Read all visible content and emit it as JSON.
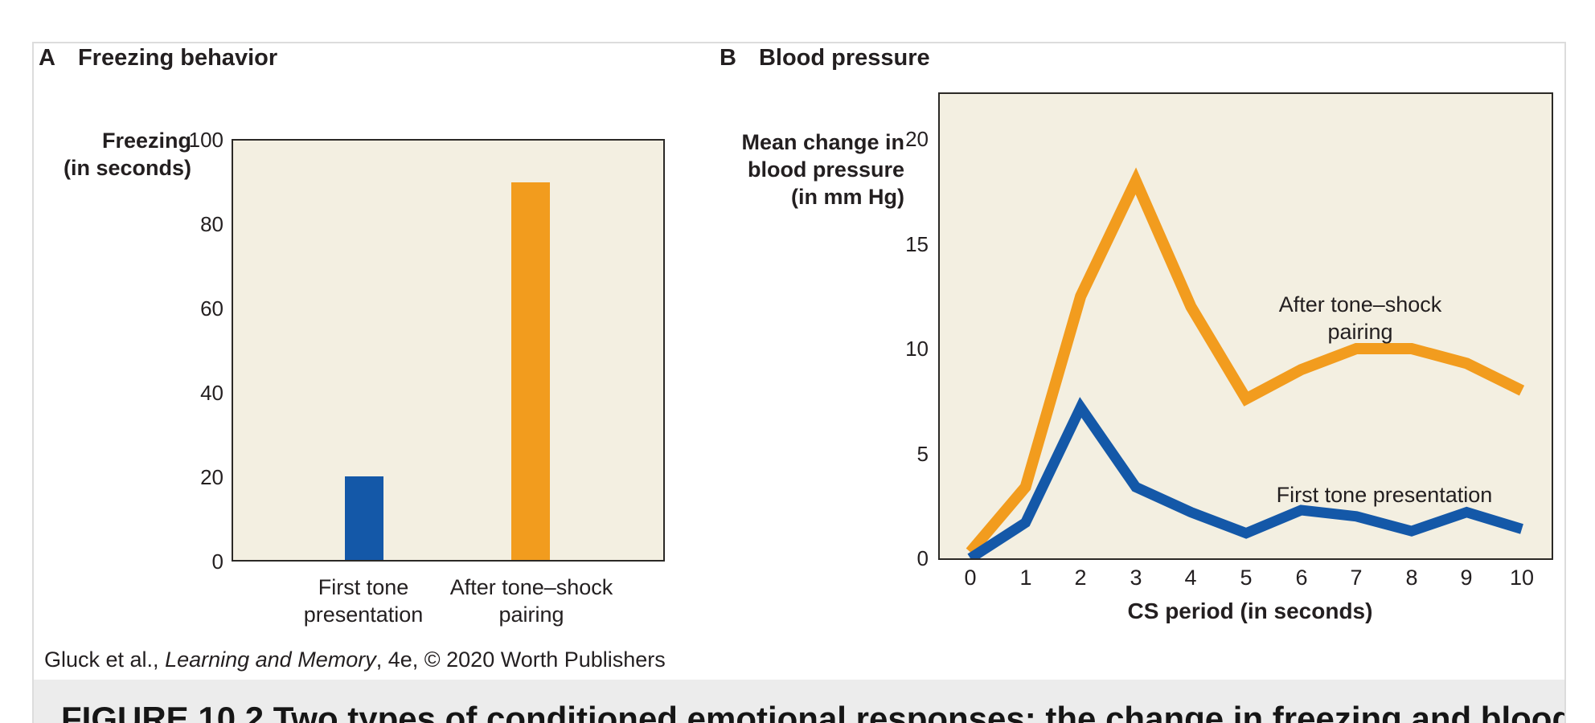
{
  "figure": {
    "panels": [
      {
        "label": "A",
        "title": "Freezing behavior"
      },
      {
        "label": "B",
        "title": "Blood pressure"
      }
    ],
    "credit": {
      "prefix": "Gluck et al., ",
      "book_title": "Learning and Memory",
      "suffix": ", 4e, © 2020 Worth Publishers"
    },
    "caption_partial": "FIGURE 10.2 Two types of conditioned emotional responses: the change in freezing and blood pressure"
  },
  "colors": {
    "blue": "#1458a8",
    "orange": "#f29c1e",
    "plot_background": "#f3efe1",
    "plot_border": "#2b2926",
    "caption_strip": "#ececec"
  },
  "chart_data": [
    {
      "type": "bar",
      "panel": "A",
      "title": "Freezing behavior",
      "ylabel_lines": [
        "Freezing",
        "(in seconds)"
      ],
      "ylabel": "Freezing (in seconds)",
      "xlabel": "",
      "y_ticks": [
        100,
        80,
        60,
        40,
        20,
        0
      ],
      "ylim": [
        0,
        100
      ],
      "grid": false,
      "categories": [
        [
          "First tone",
          "presentation"
        ],
        [
          "After tone–shock",
          "pairing"
        ]
      ],
      "values": [
        20,
        90
      ],
      "bar_colors": [
        "#1458a8",
        "#f29c1e"
      ]
    },
    {
      "type": "line",
      "panel": "B",
      "title": "Blood pressure",
      "ylabel_lines": [
        "Mean change in",
        "blood pressure",
        "(in mm Hg)"
      ],
      "ylabel": "Mean change in blood pressure (in mm Hg)",
      "xlabel": "CS period (in seconds)",
      "y_ticks": [
        20,
        15,
        10,
        5,
        0
      ],
      "ylim": [
        0,
        22
      ],
      "x": [
        0,
        1,
        2,
        3,
        4,
        5,
        6,
        7,
        8,
        9,
        10
      ],
      "grid": false,
      "legend_position": "inline-annotations",
      "series": [
        {
          "name": "After tone–shock pairing",
          "color": "#f29c1e",
          "values": [
            0.3,
            3.4,
            12.5,
            18,
            12,
            7.6,
            9,
            10,
            10,
            9.3,
            8
          ],
          "annotation_lines": [
            "After tone–shock",
            "pairing"
          ]
        },
        {
          "name": "First tone presentation",
          "color": "#1458a8",
          "values": [
            0,
            1.7,
            7.2,
            3.4,
            2.2,
            1.2,
            2.3,
            2.0,
            1.3,
            2.2,
            1.4
          ],
          "annotation_lines": [
            "First tone presentation"
          ]
        }
      ]
    }
  ]
}
